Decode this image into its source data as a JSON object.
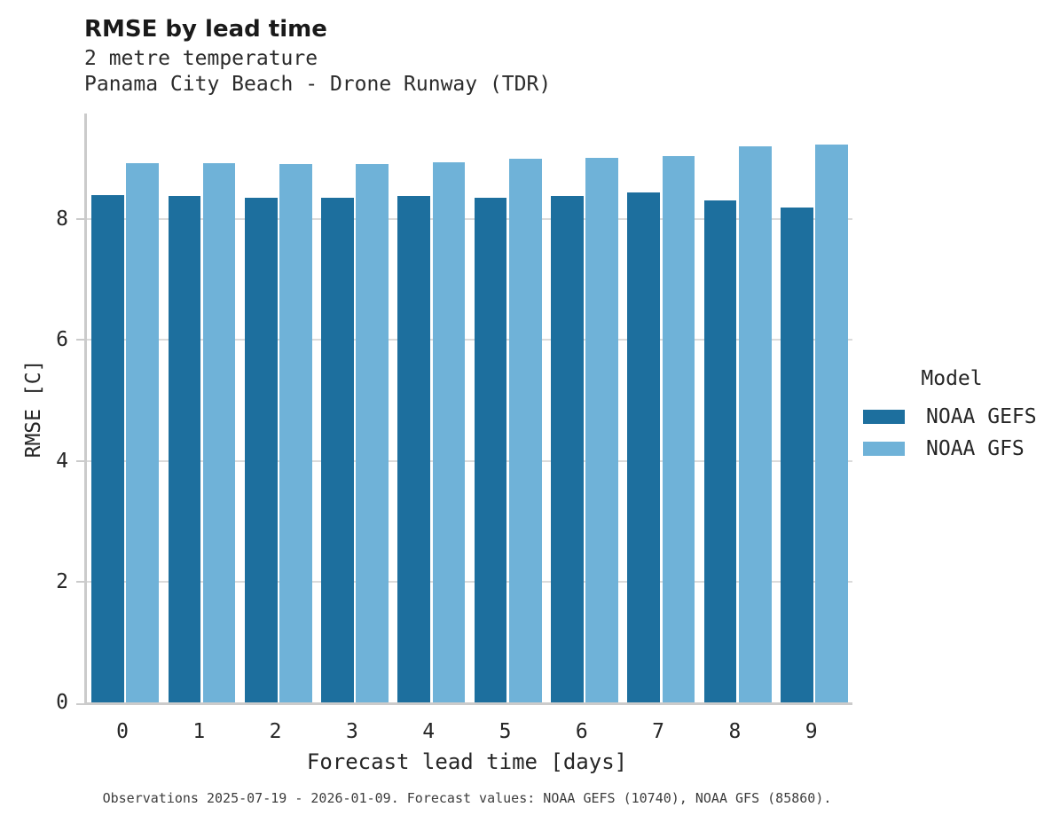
{
  "header": {
    "title": "RMSE by lead time",
    "subtitle1": "2 metre temperature",
    "subtitle2": "Panama City Beach - Drone Runway (TDR)"
  },
  "chart_data": {
    "type": "bar",
    "categories": [
      "0",
      "1",
      "2",
      "3",
      "4",
      "5",
      "6",
      "7",
      "8",
      "9"
    ],
    "series": [
      {
        "name": "NOAA GEFS",
        "color": "#1d6f9e",
        "values": [
          8.4,
          8.38,
          8.35,
          8.35,
          8.39,
          8.36,
          8.39,
          8.45,
          8.31,
          8.19
        ]
      },
      {
        "name": "NOAA GFS",
        "color": "#6fb2d8",
        "values": [
          8.93,
          8.93,
          8.92,
          8.92,
          8.95,
          9.0,
          9.02,
          9.05,
          9.21,
          9.24
        ]
      }
    ],
    "title": "RMSE by lead time",
    "xlabel": "Forecast lead time [days]",
    "ylabel": "RMSE [C]",
    "yticks": [
      0,
      2,
      4,
      6,
      8
    ],
    "ylim": [
      0,
      9.75
    ],
    "grid": "horizontal",
    "legend_title": "Model",
    "legend_position": "right"
  },
  "footer": {
    "caption": "Observations 2025-07-19 - 2026-01-09. Forecast values: NOAA GEFS (10740), NOAA GFS (85860)."
  }
}
